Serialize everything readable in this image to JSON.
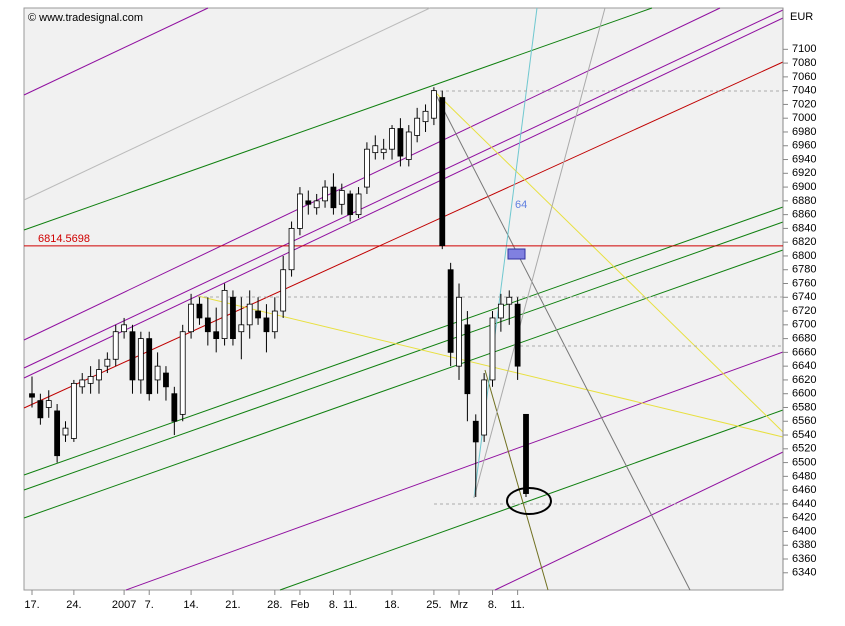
{
  "chart_data": {
    "type": "candlestick",
    "credit": "© www.tradesignal.com",
    "unit": "EUR",
    "annotation": "64",
    "hline": {
      "value": 6814.5698,
      "color": "#d00000"
    },
    "up_color": "#ffffff",
    "down_color": "#000000",
    "categories": [
      "17.",
      null,
      null,
      null,
      null,
      "24.",
      null,
      null,
      null,
      null,
      null,
      "2007",
      null,
      null,
      "7.",
      null,
      null,
      null,
      null,
      "14.",
      null,
      null,
      null,
      null,
      "21.",
      null,
      null,
      null,
      null,
      "28.",
      null,
      null,
      "Feb",
      null,
      null,
      null,
      "8.",
      null,
      "11.",
      null,
      null,
      null,
      null,
      "18.",
      null,
      null,
      null,
      null,
      "25.",
      null,
      null,
      "Mrz",
      null,
      null,
      null,
      "8.",
      null,
      null,
      "11.",
      null
    ],
    "open": [
      6600,
      6590,
      6580,
      6575,
      6540,
      6535,
      6610,
      6615,
      6620,
      6640,
      6650,
      6690,
      6690,
      6620,
      6680,
      6620,
      6630,
      6600,
      6570,
      6690,
      6730,
      6710,
      6690,
      6680,
      6740,
      6690,
      6700,
      6720,
      6710,
      6690,
      6720,
      6780,
      6840,
      6880,
      6870,
      6880,
      6900,
      6875,
      6890,
      6860,
      6900,
      6950,
      6950,
      6955,
      6985,
      6940,
      6975,
      6995,
      7000,
      7030,
      6780,
      6640,
      6700,
      6560,
      6540,
      6620,
      6710,
      6730,
      6730,
      6570
    ],
    "high": [
      6625,
      6600,
      6605,
      6585,
      6560,
      6620,
      6630,
      6640,
      6650,
      6660,
      6700,
      6710,
      6700,
      6690,
      6690,
      6660,
      6640,
      6610,
      6700,
      6745,
      6740,
      6740,
      6725,
      6760,
      6750,
      6740,
      6750,
      6740,
      6730,
      6740,
      6800,
      6850,
      6900,
      6895,
      6890,
      6910,
      6920,
      6905,
      6895,
      6900,
      6965,
      6975,
      6970,
      6990,
      7000,
      6990,
      7015,
      7020,
      7045,
      7040,
      6790,
      6760,
      6720,
      6570,
      6630,
      6720,
      6745,
      6750,
      6740,
      6570
    ],
    "low": [
      6580,
      6555,
      6565,
      6500,
      6530,
      6530,
      6600,
      6600,
      6600,
      6630,
      6640,
      6680,
      6600,
      6600,
      6590,
      6600,
      6590,
      6540,
      6560,
      6680,
      6700,
      6670,
      6660,
      6670,
      6670,
      6650,
      6680,
      6700,
      6660,
      6680,
      6710,
      6770,
      6830,
      6860,
      6860,
      6870,
      6860,
      6860,
      6850,
      6855,
      6890,
      6940,
      6940,
      6940,
      6930,
      6930,
      6965,
      6980,
      6990,
      6810,
      6640,
      6620,
      6560,
      6450,
      6530,
      6610,
      6690,
      6700,
      6620,
      6450
    ],
    "close": [
      6595,
      6565,
      6590,
      6510,
      6550,
      6615,
      6620,
      6625,
      6635,
      6650,
      6690,
      6700,
      6620,
      6680,
      6600,
      6640,
      6610,
      6560,
      6690,
      6730,
      6710,
      6690,
      6680,
      6750,
      6680,
      6700,
      6730,
      6710,
      6690,
      6720,
      6780,
      6840,
      6890,
      6875,
      6880,
      6900,
      6870,
      6895,
      6860,
      6890,
      6955,
      6960,
      6955,
      6985,
      6945,
      6980,
      7000,
      7010,
      7040,
      6815,
      6660,
      6740,
      6600,
      6530,
      6620,
      6710,
      6730,
      6740,
      6640,
      6455
    ],
    "ylim": [
      6315,
      7160
    ],
    "yticks": [
      6340,
      6360,
      6380,
      6400,
      6420,
      6440,
      6460,
      6480,
      6500,
      6520,
      6540,
      6560,
      6580,
      6600,
      6620,
      6640,
      6660,
      6680,
      6700,
      6720,
      6740,
      6760,
      6780,
      6800,
      6820,
      6840,
      6860,
      6880,
      6900,
      6920,
      6940,
      6960,
      6980,
      7000,
      7020,
      7040,
      7060,
      7080,
      7100
    ]
  }
}
